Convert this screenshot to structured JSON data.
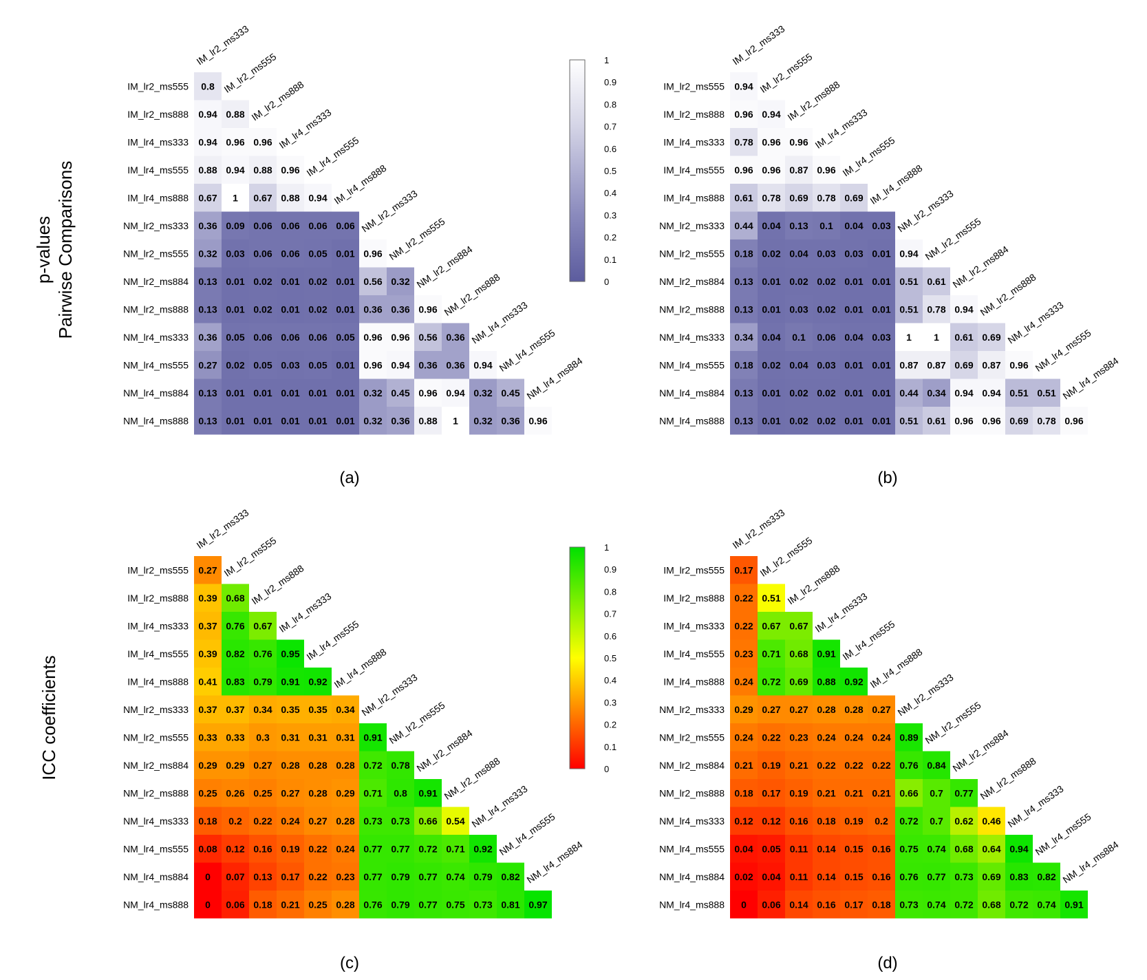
{
  "figure": {
    "row_titles": [
      {
        "line1": "p-values",
        "line2": "Pairwise Comparisons"
      },
      {
        "line1": "ICC coefficients",
        "line2": ""
      }
    ],
    "panel_labels": [
      "(a)",
      "(b)",
      "(c)",
      "(d)"
    ]
  },
  "colors": {
    "pvalue_low": "#6e6ea8",
    "pvalue_high": "#ffffff",
    "icc_low": "#ff0000",
    "icc_mid": "#ffff00",
    "icc_high": "#00ff00",
    "text": "#000000"
  },
  "chart_data": [
    {
      "type": "heatmap",
      "panel": "(a)",
      "title": "p-values Pairwise Comparisons",
      "colormap": "pvalue",
      "scale": [
        0,
        1
      ],
      "colorbar_ticks": [
        "1",
        "0.9",
        "0.8",
        "0.7",
        "0.6",
        "0.5",
        "0.4",
        "0.3",
        "0.2",
        "0.1",
        "0"
      ],
      "row_labels": [
        "IM_lr2_ms555",
        "IM_lr2_ms888",
        "IM_lr4_ms333",
        "IM_lr4_ms555",
        "IM_lr4_ms888",
        "NM_lr2_ms333",
        "NM_lr2_ms555",
        "NM_lr2_ms884",
        "NM_lr2_ms888",
        "NM_lr4_ms333",
        "NM_lr4_ms555",
        "NM_lr4_ms884",
        "NM_lr4_ms888"
      ],
      "col_labels": [
        "IM_lr2_ms333",
        "IM_lr2_ms555",
        "IM_lr2_ms888",
        "IM_lr4_ms333",
        "IM_lr4_ms555",
        "IM_lr4_ms888",
        "NM_lr2_ms333",
        "NM_lr2_ms555",
        "NM_lr2_ms884",
        "NM_lr2_ms888",
        "NM_lr4_ms333",
        "NM_lr4_ms555",
        "NM_lr4_ms884"
      ],
      "values": [
        [
          "0.8"
        ],
        [
          "0.94",
          "0.88"
        ],
        [
          "0.94",
          "0.96",
          "0.96"
        ],
        [
          "0.88",
          "0.94",
          "0.88",
          "0.96"
        ],
        [
          "0.67",
          "1",
          "0.67",
          "0.88",
          "0.94"
        ],
        [
          "0.36",
          "0.09",
          "0.06",
          "0.06",
          "0.06",
          "0.06"
        ],
        [
          "0.32",
          "0.03",
          "0.06",
          "0.06",
          "0.05",
          "0.01",
          "0.96"
        ],
        [
          "0.13",
          "0.01",
          "0.02",
          "0.01",
          "0.02",
          "0.01",
          "0.56",
          "0.32"
        ],
        [
          "0.13",
          "0.01",
          "0.02",
          "0.01",
          "0.02",
          "0.01",
          "0.36",
          "0.36",
          "0.96"
        ],
        [
          "0.36",
          "0.05",
          "0.06",
          "0.06",
          "0.06",
          "0.05",
          "0.96",
          "0.96",
          "0.56",
          "0.36"
        ],
        [
          "0.27",
          "0.02",
          "0.05",
          "0.03",
          "0.05",
          "0.01",
          "0.96",
          "0.94",
          "0.36",
          "0.36",
          "0.94"
        ],
        [
          "0.13",
          "0.01",
          "0.01",
          "0.01",
          "0.01",
          "0.01",
          "0.32",
          "0.45",
          "0.96",
          "0.94",
          "0.32",
          "0.45"
        ],
        [
          "0.13",
          "0.01",
          "0.01",
          "0.01",
          "0.01",
          "0.01",
          "0.32",
          "0.36",
          "0.88",
          "1",
          "0.32",
          "0.36",
          "0.96"
        ]
      ]
    },
    {
      "type": "heatmap",
      "panel": "(b)",
      "title": "p-values Pairwise Comparisons",
      "colormap": "pvalue",
      "scale": [
        0,
        1
      ],
      "colorbar_ticks": [],
      "row_labels": [
        "IM_lr2_ms555",
        "IM_lr2_ms888",
        "IM_lr4_ms333",
        "IM_lr4_ms555",
        "IM_lr4_ms888",
        "NM_lr2_ms333",
        "NM_lr2_ms555",
        "NM_lr2_ms884",
        "NM_lr2_ms888",
        "NM_lr4_ms333",
        "NM_lr4_ms555",
        "NM_lr4_ms884",
        "NM_lr4_ms888"
      ],
      "col_labels": [
        "IM_lr2_ms333",
        "IM_lr2_ms555",
        "IM_lr2_ms888",
        "IM_lr4_ms333",
        "IM_lr4_ms555",
        "IM_lr4_ms888",
        "NM_lr2_ms333",
        "NM_lr2_ms555",
        "NM_lr2_ms884",
        "NM_lr2_ms888",
        "NM_lr4_ms333",
        "NM_lr4_ms555",
        "NM_lr4_ms884"
      ],
      "values": [
        [
          "0.94"
        ],
        [
          "0.96",
          "0.94"
        ],
        [
          "0.78",
          "0.96",
          "0.96"
        ],
        [
          "0.96",
          "0.96",
          "0.87",
          "0.96"
        ],
        [
          "0.61",
          "0.78",
          "0.69",
          "0.78",
          "0.69"
        ],
        [
          "0.44",
          "0.04",
          "0.13",
          "0.1",
          "0.04",
          "0.03"
        ],
        [
          "0.18",
          "0.02",
          "0.04",
          "0.03",
          "0.03",
          "0.01",
          "0.94"
        ],
        [
          "0.13",
          "0.01",
          "0.02",
          "0.02",
          "0.01",
          "0.01",
          "0.51",
          "0.61"
        ],
        [
          "0.13",
          "0.01",
          "0.03",
          "0.02",
          "0.01",
          "0.01",
          "0.51",
          "0.78",
          "0.94"
        ],
        [
          "0.34",
          "0.04",
          "0.1",
          "0.06",
          "0.04",
          "0.03",
          "1",
          "1",
          "0.61",
          "0.69"
        ],
        [
          "0.18",
          "0.02",
          "0.04",
          "0.03",
          "0.01",
          "0.01",
          "0.87",
          "0.87",
          "0.69",
          "0.87",
          "0.96"
        ],
        [
          "0.13",
          "0.01",
          "0.02",
          "0.02",
          "0.01",
          "0.01",
          "0.44",
          "0.34",
          "0.94",
          "0.94",
          "0.51",
          "0.51"
        ],
        [
          "0.13",
          "0.01",
          "0.02",
          "0.02",
          "0.01",
          "0.01",
          "0.51",
          "0.61",
          "0.96",
          "0.96",
          "0.69",
          "0.78",
          "0.96"
        ]
      ]
    },
    {
      "type": "heatmap",
      "panel": "(c)",
      "title": "ICC coefficients",
      "colormap": "icc",
      "scale": [
        0,
        1
      ],
      "colorbar_ticks": [
        "1",
        "0.9",
        "0.8",
        "0.7",
        "0.6",
        "0.5",
        "0.4",
        "0.3",
        "0.2",
        "0.1",
        "0"
      ],
      "row_labels": [
        "IM_lr2_ms555",
        "IM_lr2_ms888",
        "IM_lr4_ms333",
        "IM_lr4_ms555",
        "IM_lr4_ms888",
        "NM_lr2_ms333",
        "NM_lr2_ms555",
        "NM_lr2_ms884",
        "NM_lr2_ms888",
        "NM_lr4_ms333",
        "NM_lr4_ms555",
        "NM_lr4_ms884",
        "NM_lr4_ms888"
      ],
      "col_labels": [
        "IM_lr2_ms333",
        "IM_lr2_ms555",
        "IM_lr2_ms888",
        "IM_lr4_ms333",
        "IM_lr4_ms555",
        "IM_lr4_ms888",
        "NM_lr2_ms333",
        "NM_lr2_ms555",
        "NM_lr2_ms884",
        "NM_lr2_ms888",
        "NM_lr4_ms333",
        "NM_lr4_ms555",
        "NM_lr4_ms884"
      ],
      "values": [
        [
          "0.27"
        ],
        [
          "0.39",
          "0.68"
        ],
        [
          "0.37",
          "0.76",
          "0.67"
        ],
        [
          "0.39",
          "0.82",
          "0.76",
          "0.95"
        ],
        [
          "0.41",
          "0.83",
          "0.79",
          "0.91",
          "0.92"
        ],
        [
          "0.37",
          "0.37",
          "0.34",
          "0.35",
          "0.35",
          "0.34"
        ],
        [
          "0.33",
          "0.33",
          "0.3",
          "0.31",
          "0.31",
          "0.31",
          "0.91"
        ],
        [
          "0.29",
          "0.29",
          "0.27",
          "0.28",
          "0.28",
          "0.28",
          "0.72",
          "0.78"
        ],
        [
          "0.25",
          "0.26",
          "0.25",
          "0.27",
          "0.28",
          "0.29",
          "0.71",
          "0.8",
          "0.91"
        ],
        [
          "0.18",
          "0.2",
          "0.22",
          "0.24",
          "0.27",
          "0.28",
          "0.73",
          "0.73",
          "0.66",
          "0.54"
        ],
        [
          "0.08",
          "0.12",
          "0.16",
          "0.19",
          "0.22",
          "0.24",
          "0.77",
          "0.77",
          "0.72",
          "0.71",
          "0.92"
        ],
        [
          "0",
          "0.07",
          "0.13",
          "0.17",
          "0.22",
          "0.23",
          "0.77",
          "0.79",
          "0.77",
          "0.74",
          "0.79",
          "0.82"
        ],
        [
          "0",
          "0.06",
          "0.18",
          "0.21",
          "0.25",
          "0.28",
          "0.76",
          "0.79",
          "0.77",
          "0.75",
          "0.73",
          "0.81",
          "0.97"
        ]
      ]
    },
    {
      "type": "heatmap",
      "panel": "(d)",
      "title": "ICC coefficients",
      "colormap": "icc",
      "scale": [
        0,
        1
      ],
      "colorbar_ticks": [],
      "row_labels": [
        "IM_lr2_ms555",
        "IM_lr2_ms888",
        "IM_lr4_ms333",
        "IM_lr4_ms555",
        "IM_lr4_ms888",
        "NM_lr2_ms333",
        "NM_lr2_ms555",
        "NM_lr2_ms884",
        "NM_lr2_ms888",
        "NM_lr4_ms333",
        "NM_lr4_ms555",
        "NM_lr4_ms884",
        "NM_lr4_ms888"
      ],
      "col_labels": [
        "IM_lr2_ms333",
        "IM_lr2_ms555",
        "IM_lr2_ms888",
        "IM_lr4_ms333",
        "IM_lr4_ms555",
        "IM_lr4_ms888",
        "NM_lr2_ms333",
        "NM_lr2_ms555",
        "NM_lr2_ms884",
        "NM_lr2_ms888",
        "NM_lr4_ms333",
        "NM_lr4_ms555",
        "NM_lr4_ms884"
      ],
      "values": [
        [
          "0.17"
        ],
        [
          "0.22",
          "0.51"
        ],
        [
          "0.22",
          "0.67",
          "0.67"
        ],
        [
          "0.23",
          "0.71",
          "0.68",
          "0.91"
        ],
        [
          "0.24",
          "0.72",
          "0.69",
          "0.88",
          "0.92"
        ],
        [
          "0.29",
          "0.27",
          "0.27",
          "0.28",
          "0.28",
          "0.27"
        ],
        [
          "0.24",
          "0.22",
          "0.23",
          "0.24",
          "0.24",
          "0.24",
          "0.89"
        ],
        [
          "0.21",
          "0.19",
          "0.21",
          "0.22",
          "0.22",
          "0.22",
          "0.76",
          "0.84"
        ],
        [
          "0.18",
          "0.17",
          "0.19",
          "0.21",
          "0.21",
          "0.21",
          "0.66",
          "0.7",
          "0.77"
        ],
        [
          "0.12",
          "0.12",
          "0.16",
          "0.18",
          "0.19",
          "0.2",
          "0.72",
          "0.7",
          "0.62",
          "0.46"
        ],
        [
          "0.04",
          "0.05",
          "0.11",
          "0.14",
          "0.15",
          "0.16",
          "0.75",
          "0.74",
          "0.68",
          "0.64",
          "0.94"
        ],
        [
          "0.02",
          "0.04",
          "0.11",
          "0.14",
          "0.15",
          "0.16",
          "0.76",
          "0.77",
          "0.73",
          "0.69",
          "0.83",
          "0.82"
        ],
        [
          "0",
          "0.06",
          "0.14",
          "0.16",
          "0.17",
          "0.18",
          "0.73",
          "0.74",
          "0.72",
          "0.68",
          "0.72",
          "0.74",
          "0.91"
        ]
      ]
    }
  ]
}
